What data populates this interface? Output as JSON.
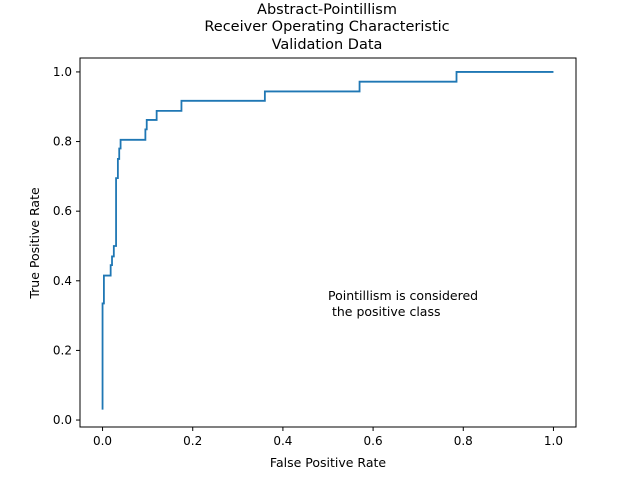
{
  "chart_data": {
    "type": "line",
    "title_lines": [
      "Abstract-Pointillism",
      "Receiver Operating Characteristic",
      "Validation Data"
    ],
    "xlabel": "False Positive Rate",
    "ylabel": "True Positive Rate",
    "xlim": [
      -0.05,
      1.05
    ],
    "ylim": [
      -0.02,
      1.04
    ],
    "xticks": [
      0.0,
      0.2,
      0.4,
      0.6,
      0.8,
      1.0
    ],
    "xtick_labels": [
      "0.0",
      "0.2",
      "0.4",
      "0.6",
      "0.8",
      "1.0"
    ],
    "yticks": [
      0.0,
      0.2,
      0.4,
      0.6,
      0.8,
      1.0
    ],
    "ytick_labels": [
      "0.0",
      "0.2",
      "0.4",
      "0.6",
      "0.8",
      "1.0"
    ],
    "grid": false,
    "annotation_lines": [
      "Pointillism is considered",
      " the positive class"
    ],
    "series": [
      {
        "color": "#1f77b4",
        "x": [
          0.0,
          0.0,
          0.0,
          0.003,
          0.003,
          0.018,
          0.018,
          0.021,
          0.021,
          0.025,
          0.025,
          0.03,
          0.03,
          0.034,
          0.034,
          0.037,
          0.037,
          0.04,
          0.04,
          0.095,
          0.095,
          0.098,
          0.098,
          0.12,
          0.12,
          0.175,
          0.175,
          0.36,
          0.36,
          0.57,
          0.57,
          0.785,
          0.785,
          1.0
        ],
        "y": [
          0.03,
          0.33,
          0.335,
          0.335,
          0.415,
          0.415,
          0.445,
          0.445,
          0.47,
          0.47,
          0.5,
          0.5,
          0.695,
          0.695,
          0.75,
          0.75,
          0.78,
          0.78,
          0.805,
          0.805,
          0.835,
          0.835,
          0.862,
          0.862,
          0.888,
          0.888,
          0.917,
          0.917,
          0.944,
          0.944,
          0.972,
          0.972,
          1.0,
          1.0
        ]
      }
    ]
  }
}
